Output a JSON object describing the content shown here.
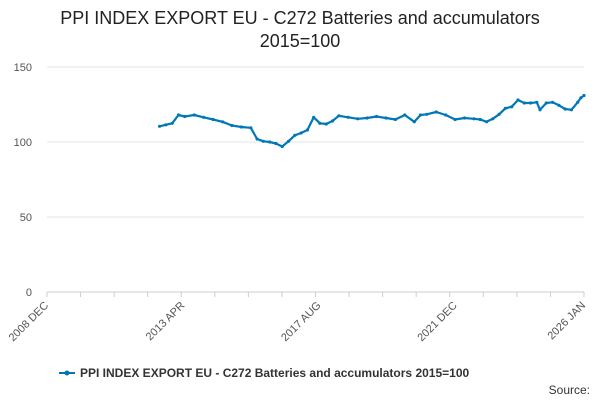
{
  "colors": {
    "series": "#0077b6",
    "grid": "#e6e6e6",
    "axis": "#cccccc",
    "text": "#555555"
  },
  "source_label": "Source:",
  "chart_data": {
    "type": "line",
    "title": "PPI INDEX EXPORT EU - C272 Batteries and accumulators",
    "subtitle": "2015=100",
    "xlabel": "",
    "ylabel": "",
    "x_range": [
      2008.917,
      2026.0
    ],
    "ylim": [
      0,
      150
    ],
    "y_ticks": [
      0,
      50,
      100,
      150
    ],
    "x_ticks": [
      {
        "label": "2008 DEC",
        "t": 2008.917
      },
      {
        "label": "2013 APR",
        "t": 2013.25
      },
      {
        "label": "2017 AUG",
        "t": 2017.583
      },
      {
        "label": "2021 DEC",
        "t": 2021.917
      },
      {
        "label": "2026 JAN",
        "t": 2026.0
      }
    ],
    "legend_position": "bottom",
    "series": [
      {
        "name": "PPI INDEX EXPORT EU - C272 Batteries and accumulators 2015=100",
        "points": [
          [
            2012.5,
            110.5
          ],
          [
            2012.7,
            111.5
          ],
          [
            2012.9,
            112.5
          ],
          [
            2013.1,
            118.0
          ],
          [
            2013.3,
            117.0
          ],
          [
            2013.6,
            118.0
          ],
          [
            2013.9,
            116.5
          ],
          [
            2014.2,
            115.0
          ],
          [
            2014.5,
            113.5
          ],
          [
            2014.8,
            111.0
          ],
          [
            2015.1,
            110.0
          ],
          [
            2015.4,
            109.5
          ],
          [
            2015.6,
            102.0
          ],
          [
            2015.8,
            100.5
          ],
          [
            2016.0,
            100.0
          ],
          [
            2016.2,
            99.0
          ],
          [
            2016.4,
            97.0
          ],
          [
            2016.6,
            100.5
          ],
          [
            2016.8,
            104.5
          ],
          [
            2017.0,
            106.0
          ],
          [
            2017.2,
            108.0
          ],
          [
            2017.4,
            116.5
          ],
          [
            2017.6,
            112.5
          ],
          [
            2017.8,
            112.0
          ],
          [
            2018.0,
            114.0
          ],
          [
            2018.2,
            117.5
          ],
          [
            2018.5,
            116.5
          ],
          [
            2018.8,
            115.5
          ],
          [
            2019.1,
            116.0
          ],
          [
            2019.4,
            117.0
          ],
          [
            2019.7,
            116.0
          ],
          [
            2020.0,
            115.0
          ],
          [
            2020.3,
            118.0
          ],
          [
            2020.6,
            113.5
          ],
          [
            2020.8,
            118.0
          ],
          [
            2021.0,
            118.5
          ],
          [
            2021.3,
            120.0
          ],
          [
            2021.6,
            118.0
          ],
          [
            2021.9,
            115.0
          ],
          [
            2022.2,
            116.0
          ],
          [
            2022.5,
            115.5
          ],
          [
            2022.7,
            115.0
          ],
          [
            2022.9,
            113.5
          ],
          [
            2023.1,
            115.5
          ],
          [
            2023.3,
            118.5
          ],
          [
            2023.5,
            122.5
          ],
          [
            2023.7,
            123.5
          ],
          [
            2023.9,
            128.0
          ],
          [
            2024.1,
            126.0
          ],
          [
            2024.3,
            126.0
          ],
          [
            2024.5,
            126.5
          ],
          [
            2024.6,
            121.5
          ],
          [
            2024.8,
            126.0
          ],
          [
            2025.0,
            126.5
          ],
          [
            2025.2,
            124.5
          ],
          [
            2025.4,
            122.0
          ],
          [
            2025.6,
            121.5
          ],
          [
            2025.8,
            126.5
          ],
          [
            2025.9,
            129.5
          ],
          [
            2026.0,
            131.0
          ]
        ]
      }
    ]
  }
}
